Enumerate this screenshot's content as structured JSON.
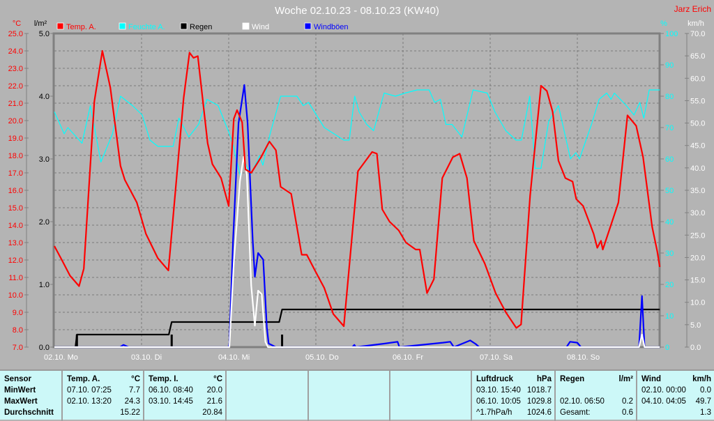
{
  "title": "Woche 02.10.23 - 08.10.23 (KW40)",
  "author": "Jarz Erich",
  "colors": {
    "background": "#b4b4b4",
    "temp": "#ff0000",
    "humidity": "#00ffff",
    "rain": "#000000",
    "wind": "#ffffff",
    "gust": "#0000ff",
    "table": "#ccf8f8"
  },
  "legend": [
    {
      "label": "Temp. A.",
      "color": "#ff0000"
    },
    {
      "label": "Feuchte A.",
      "color": "#00ffff"
    },
    {
      "label": "Regen",
      "color": "#000000"
    },
    {
      "label": "Wind",
      "color": "#ffffff"
    },
    {
      "label": "Windböen",
      "color": "#0000ff"
    }
  ],
  "chart_data": {
    "type": "line",
    "title": "Woche 02.10.23 - 08.10.23 (KW40)",
    "x_unit": "hours since 02.10. 00:00",
    "xlim": [
      0,
      166.7
    ],
    "x_ticks": [
      "02.10.  Mo",
      "03.10.  Di",
      "04.10.  Mi",
      "05.10.  Do",
      "06.10.  Fr",
      "07.10.  Sa",
      "08.10.  So"
    ],
    "axes": {
      "temp": {
        "unit": "°C",
        "ylim": [
          7,
          25
        ],
        "ticks": [
          "25.0",
          "24.0",
          "23.0",
          "22.0",
          "21.0",
          "20.0",
          "19.0",
          "18.0",
          "17.0",
          "16.0",
          "15.0",
          "14.0",
          "13.0",
          "12.0",
          "11.0",
          "10.0",
          "9.0",
          "8.0",
          "7.0"
        ]
      },
      "rain": {
        "unit": "l/m²",
        "ylim": [
          0,
          5
        ],
        "ticks": [
          "5.0",
          "4.0",
          "3.0",
          "2.0",
          "1.0",
          "0.0"
        ]
      },
      "humidity": {
        "unit": "%",
        "ylim": [
          0,
          100
        ],
        "ticks": [
          "100",
          "90",
          "80",
          "70",
          "60",
          "50",
          "40",
          "30",
          "20",
          "10",
          "0"
        ]
      },
      "wind": {
        "unit": "km/h",
        "ylim": [
          0,
          70
        ],
        "ticks": [
          "70.0",
          "65.0",
          "60.0",
          "55.0",
          "50.0",
          "45.0",
          "40.0",
          "35.0",
          "30.0",
          "25.0",
          "20.0",
          "15.0",
          "10.0",
          "5.0",
          "0.0"
        ]
      }
    },
    "series": [
      {
        "name": "Temp. A.",
        "axis": "temp",
        "points": [
          [
            0,
            12.8
          ],
          [
            2.3,
            11.9
          ],
          [
            4.3,
            11.1
          ],
          [
            6.8,
            10.5
          ],
          [
            8.1,
            11.5
          ],
          [
            11,
            21.1
          ],
          [
            13.2,
            24.0
          ],
          [
            15.4,
            21.9
          ],
          [
            18.2,
            17.4
          ],
          [
            19.4,
            16.6
          ],
          [
            22.7,
            15.3
          ],
          [
            25.2,
            13.5
          ],
          [
            28.5,
            12.1
          ],
          [
            31.4,
            11.4
          ],
          [
            35.6,
            21.3
          ],
          [
            37.2,
            23.9
          ],
          [
            38.3,
            23.6
          ],
          [
            39.5,
            23.7
          ],
          [
            42.2,
            18.7
          ],
          [
            43.5,
            17.5
          ],
          [
            45.9,
            16.7
          ],
          [
            48,
            15.1
          ],
          [
            49.4,
            20.1
          ],
          [
            50.3,
            20.6
          ],
          [
            51.7,
            19.9
          ],
          [
            52.6,
            17.2
          ],
          [
            54.2,
            17.0
          ],
          [
            56.9,
            17.9
          ],
          [
            59.2,
            18.8
          ],
          [
            61,
            18.3
          ],
          [
            62.3,
            16.2
          ],
          [
            65.2,
            15.8
          ],
          [
            68.1,
            12.3
          ],
          [
            69.5,
            12.3
          ],
          [
            72,
            11.3
          ],
          [
            74.3,
            10.4
          ],
          [
            76.8,
            8.9
          ],
          [
            79.7,
            8.2
          ],
          [
            83.6,
            17.1
          ],
          [
            87.5,
            18.2
          ],
          [
            88.8,
            18.1
          ],
          [
            90.3,
            14.9
          ],
          [
            92.3,
            14.2
          ],
          [
            94.8,
            13.7
          ],
          [
            96.8,
            13.0
          ],
          [
            99.5,
            12.6
          ],
          [
            100.6,
            12.6
          ],
          [
            102.6,
            10.1
          ],
          [
            104.5,
            10.9
          ],
          [
            106.8,
            16.7
          ],
          [
            109.7,
            17.9
          ],
          [
            111.6,
            18.1
          ],
          [
            113.6,
            16.7
          ],
          [
            115.5,
            13.1
          ],
          [
            118.5,
            11.8
          ],
          [
            121.5,
            10.1
          ],
          [
            124.3,
            9.0
          ],
          [
            127.2,
            8.1
          ],
          [
            128.5,
            8.3
          ],
          [
            131,
            15.7
          ],
          [
            134,
            22.0
          ],
          [
            135.6,
            21.7
          ],
          [
            137.2,
            20.5
          ],
          [
            138.8,
            17.7
          ],
          [
            140.7,
            16.7
          ],
          [
            142.7,
            16.5
          ],
          [
            143.7,
            15.5
          ],
          [
            145.6,
            15.1
          ],
          [
            148.5,
            13.5
          ],
          [
            149.5,
            12.7
          ],
          [
            150.5,
            13.1
          ],
          [
            151,
            12.6
          ],
          [
            153.4,
            14.1
          ],
          [
            155.3,
            15.3
          ],
          [
            157.8,
            20.3
          ],
          [
            160.2,
            19.7
          ],
          [
            162.1,
            17.9
          ],
          [
            164.6,
            13.9
          ],
          [
            166,
            12.5
          ],
          [
            166.7,
            11.6
          ]
        ]
      },
      {
        "name": "Feuchte A.",
        "axis": "humidity",
        "points": [
          [
            0,
            75
          ],
          [
            2.7,
            68
          ],
          [
            3.7,
            70
          ],
          [
            7.6,
            65
          ],
          [
            9.9,
            77
          ],
          [
            12.8,
            59
          ],
          [
            16,
            68
          ],
          [
            18.2,
            80
          ],
          [
            21.5,
            77
          ],
          [
            24.2,
            74
          ],
          [
            26.3,
            66
          ],
          [
            28.5,
            64
          ],
          [
            32.7,
            64
          ],
          [
            34.3,
            73
          ],
          [
            37,
            67
          ],
          [
            39.7,
            71
          ],
          [
            42,
            79
          ],
          [
            45.1,
            77
          ],
          [
            48.2,
            68
          ],
          [
            49.3,
            64
          ],
          [
            51.3,
            54
          ],
          [
            52,
            60
          ],
          [
            54,
            55
          ],
          [
            56.5,
            61
          ],
          [
            57.4,
            58
          ],
          [
            59.4,
            68
          ],
          [
            62.3,
            80
          ],
          [
            66.8,
            80
          ],
          [
            68.5,
            77
          ],
          [
            70,
            78
          ],
          [
            74.3,
            70
          ],
          [
            79.7,
            66
          ],
          [
            81.2,
            66
          ],
          [
            82.7,
            80
          ],
          [
            83.9,
            75
          ],
          [
            86,
            71
          ],
          [
            87.9,
            69
          ],
          [
            90.8,
            81
          ],
          [
            93.9,
            80
          ],
          [
            96.6,
            81
          ],
          [
            99.9,
            82
          ],
          [
            103.2,
            82
          ],
          [
            104.7,
            78
          ],
          [
            106.3,
            79
          ],
          [
            107.8,
            71
          ],
          [
            109.5,
            71
          ],
          [
            112.2,
            67
          ],
          [
            115.3,
            82
          ],
          [
            119.2,
            81
          ],
          [
            121.3,
            75
          ],
          [
            124.3,
            69
          ],
          [
            127.1,
            66
          ],
          [
            128.6,
            66
          ],
          [
            130.9,
            80
          ],
          [
            132.4,
            57
          ],
          [
            134,
            57
          ],
          [
            136.1,
            72
          ],
          [
            138.8,
            77
          ],
          [
            142.1,
            60
          ],
          [
            143.6,
            62
          ],
          [
            144.6,
            60
          ],
          [
            147.9,
            71
          ],
          [
            150,
            79
          ],
          [
            152.1,
            81
          ],
          [
            153.3,
            79
          ],
          [
            154.2,
            81
          ],
          [
            157.5,
            77
          ],
          [
            159.6,
            74
          ],
          [
            161.2,
            78
          ],
          [
            162.3,
            73
          ],
          [
            163.8,
            82
          ],
          [
            166.7,
            82
          ]
        ]
      },
      {
        "name": "Wind",
        "axis": "wind",
        "points": [
          [
            0,
            0
          ],
          [
            48.2,
            0
          ],
          [
            49.4,
            18.8
          ],
          [
            51.1,
            37
          ],
          [
            52.1,
            42.5
          ],
          [
            53,
            38.6
          ],
          [
            54.2,
            13.7
          ],
          [
            55.2,
            4.8
          ],
          [
            56.1,
            12.6
          ],
          [
            57.1,
            11.8
          ],
          [
            58.1,
            1.2
          ],
          [
            58.8,
            0
          ],
          [
            161,
            0
          ],
          [
            161.8,
            2.8
          ],
          [
            162.5,
            0
          ],
          [
            166.7,
            0
          ]
        ]
      },
      {
        "name": "Windböen",
        "axis": "wind",
        "points": [
          [
            0,
            0
          ],
          [
            18,
            0
          ],
          [
            19,
            0.5
          ],
          [
            20.5,
            0
          ],
          [
            48,
            0
          ],
          [
            48.2,
            0.8
          ],
          [
            49.2,
            24
          ],
          [
            50.7,
            50
          ],
          [
            52.3,
            58.5
          ],
          [
            53.2,
            50
          ],
          [
            54.6,
            24
          ],
          [
            55.2,
            15.7
          ],
          [
            56.1,
            21
          ],
          [
            57.5,
            19.5
          ],
          [
            58.5,
            4.4
          ],
          [
            59,
            0.8
          ],
          [
            61,
            0
          ],
          [
            82,
            0
          ],
          [
            82.6,
            0.5
          ],
          [
            83,
            0
          ],
          [
            91,
            0.8
          ],
          [
            94.5,
            1.2
          ],
          [
            95,
            0
          ],
          [
            107,
            1
          ],
          [
            109,
            1.2
          ],
          [
            110,
            0
          ],
          [
            114.5,
            1.5
          ],
          [
            116,
            0.7
          ],
          [
            117,
            0
          ],
          [
            141,
            0
          ],
          [
            142,
            1.2
          ],
          [
            144,
            1
          ],
          [
            145,
            0
          ],
          [
            161,
            0
          ],
          [
            161.8,
            11.4
          ],
          [
            162.5,
            0
          ],
          [
            166.7,
            0
          ]
        ]
      },
      {
        "name": "Regen",
        "axis": "rain",
        "type": "step",
        "points": [
          [
            0,
            0
          ],
          [
            5.8,
            0
          ],
          [
            6.2,
            0.2
          ],
          [
            31.5,
            0.2
          ],
          [
            32.3,
            0.4
          ],
          [
            61.9,
            0.4
          ],
          [
            62.7,
            0.6
          ],
          [
            166.7,
            0.6
          ]
        ]
      }
    ],
    "rain_events": [
      [
        6.2,
        0.2
      ],
      [
        32.3,
        0.2
      ],
      [
        62.7,
        0.2
      ]
    ]
  },
  "table": {
    "row_labels": [
      "Sensor",
      "MinWert",
      "MaxWert",
      "Durchschnitt"
    ],
    "columns": [
      {
        "header": "Temp. A.",
        "unit": "°C",
        "rows": [
          [
            "07.10.  07:25",
            "7.7"
          ],
          [
            "02.10.  13:20",
            "24.3"
          ],
          [
            "",
            "15.22"
          ]
        ]
      },
      {
        "header": "Temp. I.",
        "unit": "°C",
        "rows": [
          [
            "06.10.  08:40",
            "20.0"
          ],
          [
            "03.10.  14:45",
            "21.6"
          ],
          [
            "",
            "20.84"
          ]
        ]
      },
      {
        "header": "",
        "unit": "",
        "rows": [
          [
            "",
            ""
          ],
          [
            "",
            ""
          ],
          [
            "",
            ""
          ]
        ]
      },
      {
        "header": "",
        "unit": "",
        "rows": [
          [
            "",
            ""
          ],
          [
            "",
            ""
          ],
          [
            "",
            ""
          ]
        ]
      },
      {
        "header": "",
        "unit": "",
        "rows": [
          [
            "",
            ""
          ],
          [
            "",
            ""
          ],
          [
            "",
            ""
          ]
        ]
      },
      {
        "header": "Luftdruck",
        "unit": "hPa",
        "rows": [
          [
            "03.10.  15:40",
            "1018.7"
          ],
          [
            "06.10.  10:05",
            "1029.8"
          ],
          [
            "^1.7hPa/h",
            "1024.6"
          ]
        ]
      },
      {
        "header": "Regen",
        "unit": "l/m²",
        "rows": [
          [
            "",
            ""
          ],
          [
            "02.10.  06:50",
            "0.2"
          ],
          [
            "Gesamt:",
            "0.6"
          ]
        ]
      },
      {
        "header": "Wind",
        "unit": "km/h",
        "rows": [
          [
            "02.10.  00:00",
            "0.0"
          ],
          [
            "04.10.  04:05",
            "49.7"
          ],
          [
            "",
            "1.3"
          ]
        ]
      }
    ]
  }
}
